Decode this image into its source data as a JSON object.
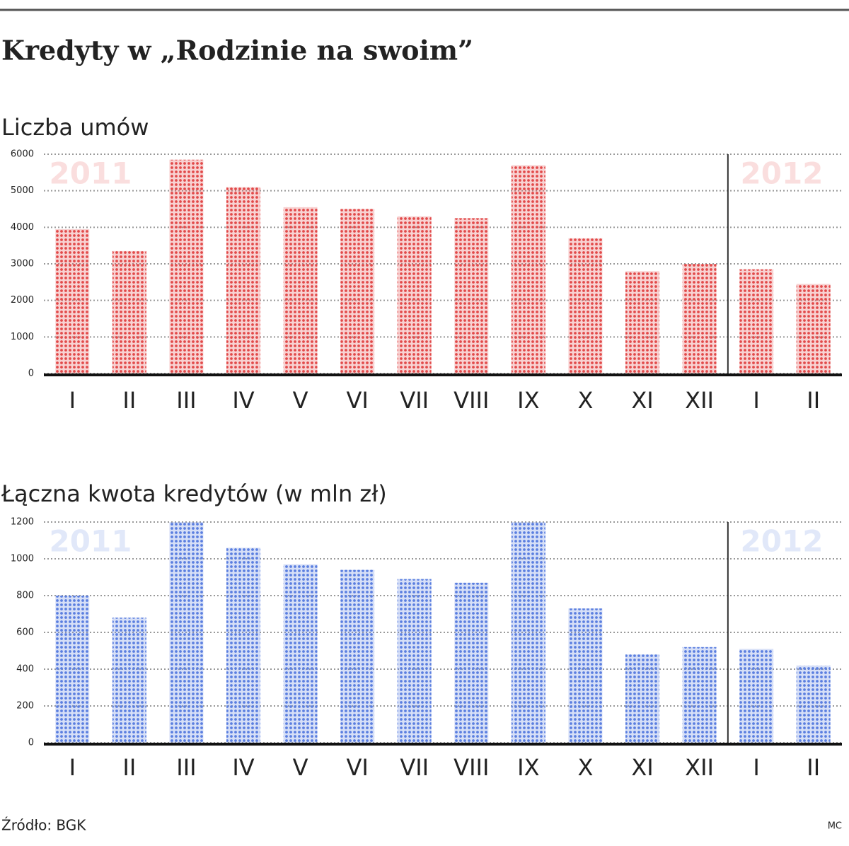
{
  "title": "Kredyty w „Rodzinie na swoim”",
  "source": "Źródło: BGK",
  "credit": "MC",
  "chart_data": [
    {
      "type": "bar",
      "title": "Liczba umów",
      "categories": [
        "I",
        "II",
        "III",
        "IV",
        "V",
        "VI",
        "VII",
        "VIII",
        "IX",
        "X",
        "XI",
        "XII",
        "I",
        "II"
      ],
      "values": [
        3950,
        3350,
        5850,
        5100,
        4550,
        4500,
        4300,
        4250,
        5700,
        3700,
        2800,
        3000,
        2850,
        2450
      ],
      "color": "#e24a4a",
      "annotations": [
        "2011",
        "2012"
      ],
      "ylim": [
        0,
        6000
      ],
      "yticks": [
        0,
        1000,
        2000,
        3000,
        4000,
        5000,
        6000
      ],
      "grid": true
    },
    {
      "type": "bar",
      "title": "Łączna kwota kredytów (w mln zł)",
      "categories": [
        "I",
        "II",
        "III",
        "IV",
        "V",
        "VI",
        "VII",
        "VIII",
        "IX",
        "X",
        "XI",
        "XII",
        "I",
        "II"
      ],
      "values": [
        800,
        680,
        1200,
        1060,
        970,
        940,
        890,
        870,
        1200,
        730,
        480,
        520,
        510,
        420
      ],
      "color": "#5b7fe0",
      "annotations": [
        "2011",
        "2012"
      ],
      "ylim": [
        0,
        1200
      ],
      "yticks": [
        0,
        200,
        400,
        600,
        800,
        1000,
        1200
      ],
      "grid": true
    }
  ]
}
